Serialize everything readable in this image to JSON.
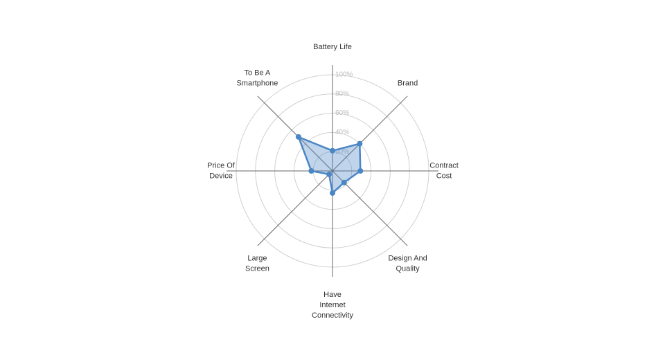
{
  "chart_data": {
    "type": "radar",
    "categories": [
      "Battery Life",
      "Brand",
      "Contract\nCost",
      "Design And\nQuality",
      "Have\nInternet\nConnectivity",
      "Large\nScreen",
      "Price Of\nDevice",
      "To Be A\nSmartphone"
    ],
    "series": [
      {
        "color": "#4a86c5",
        "values": [
          21,
          40,
          29,
          17,
          23,
          5,
          22,
          50
        ]
      }
    ],
    "ylim": [
      0,
      100
    ],
    "yticks": [
      {
        "value": 20,
        "label": "20%"
      },
      {
        "value": 40,
        "label": "40%"
      },
      {
        "value": 60,
        "label": "60%"
      },
      {
        "value": 80,
        "label": "80%"
      },
      {
        "value": 100,
        "label": "100%"
      }
    ],
    "grid": true
  }
}
